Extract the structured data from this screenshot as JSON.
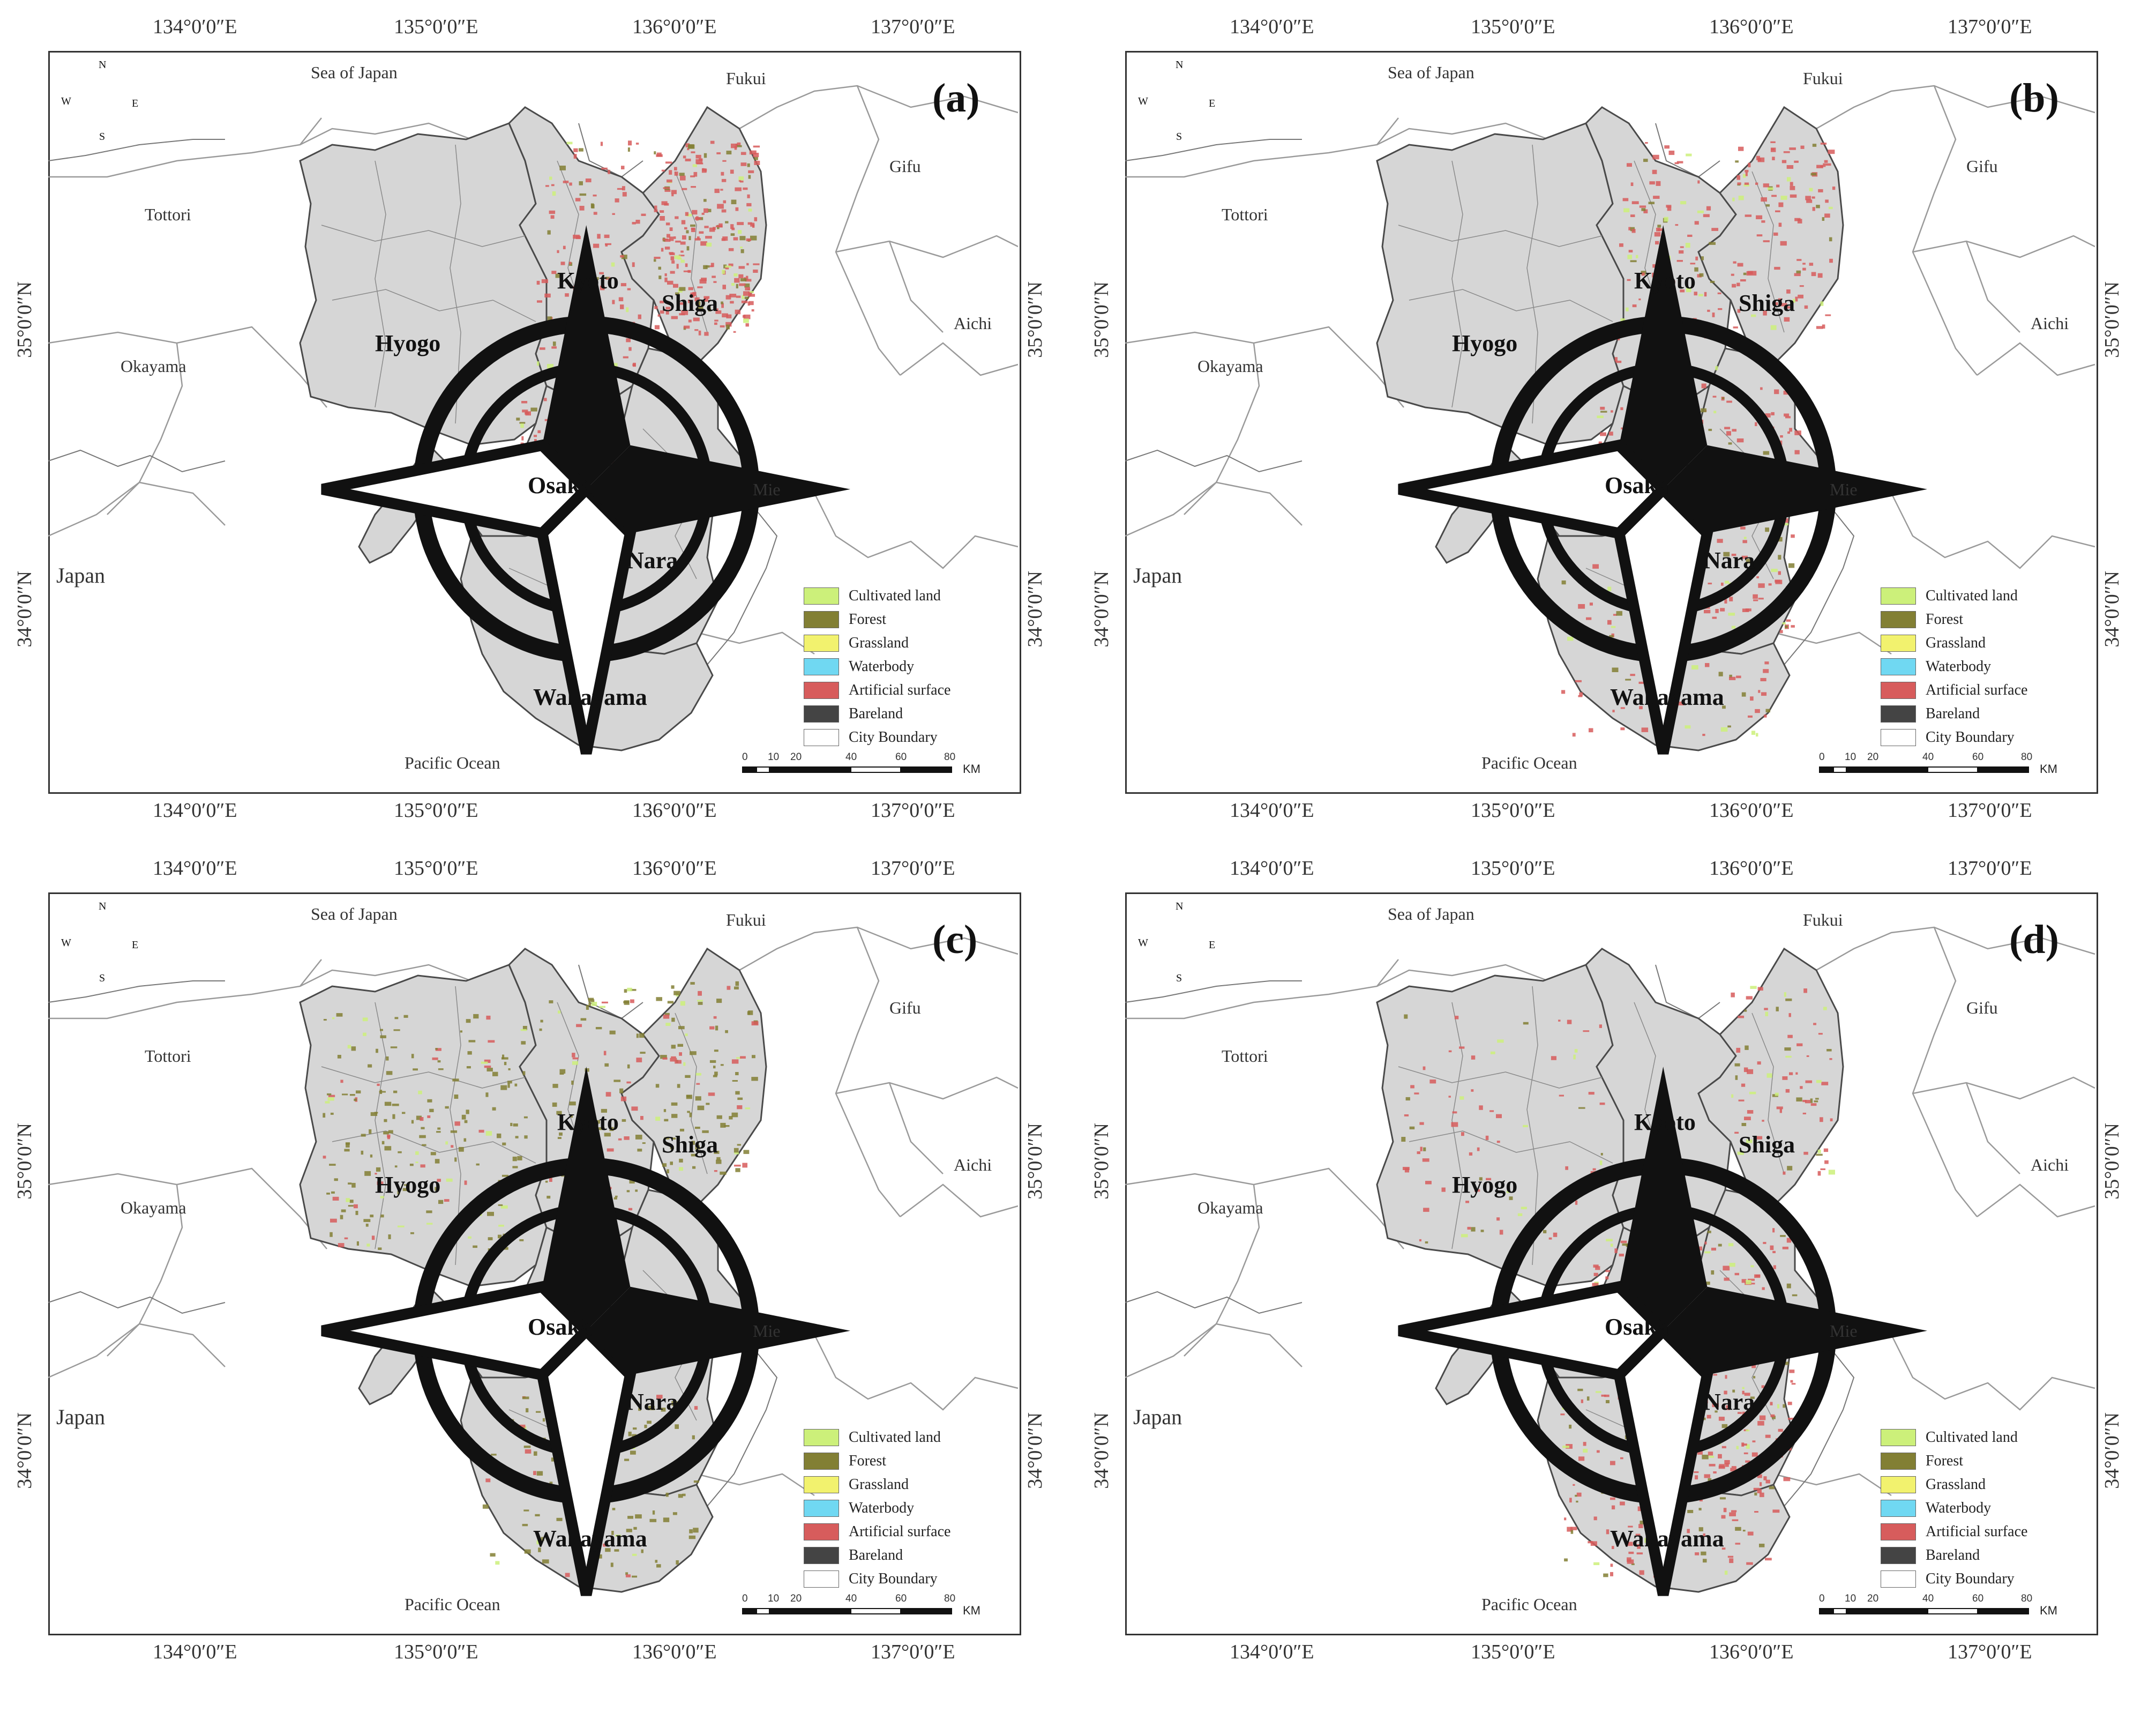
{
  "colors": {
    "land": "#d6d6d6",
    "boundary": "#555555",
    "cultivated": "#ccf07a",
    "forest": "#827f34",
    "grassland": "#f2f26e",
    "waterbody": "#70d8f2",
    "artificial": "#d75c5c",
    "bareland": "#444444",
    "city_boundary": "#ffffff"
  },
  "axes": {
    "longitudes": [
      "134°0′0″E",
      "135°0′0″E",
      "136°0′0″E",
      "137°0′0″E"
    ],
    "latitudes": [
      "35°0′0″N",
      "34°0′0″N"
    ]
  },
  "places": {
    "sea_of_japan": "Sea of Japan",
    "pacific": "Pacific Ocean",
    "japan": "Japan",
    "fukui": "Fukui",
    "gifu": "Gifu",
    "aichi": "Aichi",
    "mie": "Mie",
    "tottori": "Tottori",
    "okayama": "Okayama"
  },
  "prefectures": {
    "hyogo": "Hyogo",
    "kyoto": "Kyoto",
    "shiga": "Shiga",
    "osaka": "Osaka",
    "nara": "Nara",
    "wakayama": "Wakayama"
  },
  "compass": {
    "n": "N",
    "s": "S",
    "e": "E",
    "w": "W"
  },
  "legend": [
    {
      "label": "Cultivated land",
      "color": "#ccf07a"
    },
    {
      "label": "Forest",
      "color": "#827f34"
    },
    {
      "label": "Grassland",
      "color": "#f2f26e"
    },
    {
      "label": "Waterbody",
      "color": "#70d8f2"
    },
    {
      "label": "Artificial surface",
      "color": "#d75c5c"
    },
    {
      "label": "Bareland",
      "color": "#444444"
    },
    {
      "label": "City Boundary",
      "color": "#ffffff"
    }
  ],
  "scalebar": {
    "ticks": [
      "0",
      "10",
      "20",
      "40",
      "60",
      "80"
    ],
    "unit": "KM"
  },
  "panels": [
    {
      "letter": "(a)",
      "dominant": "artificial",
      "focus": "shiga"
    },
    {
      "letter": "(b)",
      "dominant": "artificial",
      "focus": "osaka-wakayama"
    },
    {
      "letter": "(c)",
      "dominant": "forest",
      "focus": "hyogo"
    },
    {
      "letter": "(d)",
      "dominant": "artificial",
      "focus": "wakayama-coast"
    }
  ]
}
